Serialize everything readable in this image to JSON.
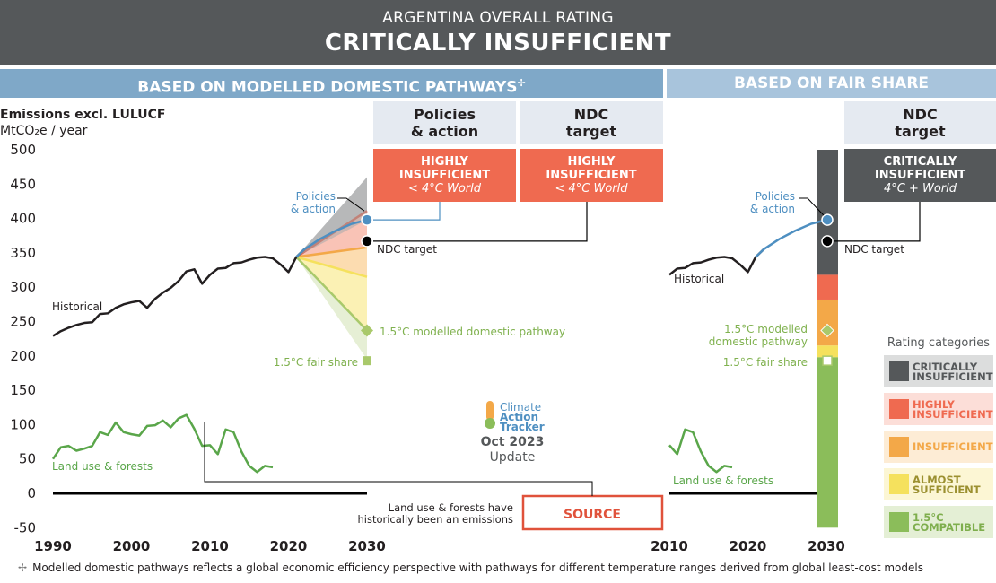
{
  "header": {
    "subtitle": "ARGENTINA OVERALL RATING",
    "title": "CRITICALLY INSUFFICIENT"
  },
  "bands": {
    "left": "BASED ON MODELLED DOMESTIC PATHWAYS",
    "left_mark": "✢",
    "right": "BASED ON FAIR SHARE"
  },
  "columns": {
    "policies": {
      "heading": "Policies\n& action",
      "rating": "HIGHLY\nINSUFFICIENT",
      "world": "< 4°C World",
      "color": "#ef6a50"
    },
    "ndc_modelled": {
      "heading": "NDC\ntarget",
      "rating": "HIGHLY\nINSUFFICIENT",
      "world": "< 4°C World",
      "color": "#ef6a50"
    },
    "ndc_fair": {
      "heading": "NDC\ntarget",
      "rating": "CRITICALLY\nINSUFFICIENT",
      "world": "4°C + World",
      "color": "#55585a"
    }
  },
  "chart_data": {
    "type": "line",
    "ylabel_line1": "Emissions excl. LULUCF",
    "ylabel_line2": "MtCO₂e / year",
    "ylim": [
      -50,
      500
    ],
    "yticks": [
      500,
      450,
      400,
      350,
      300,
      250,
      200,
      150,
      100,
      50,
      0,
      -50
    ],
    "xlim_left": [
      1990,
      2030
    ],
    "xticks_left": [
      1990,
      2000,
      2010,
      2020,
      2030
    ],
    "xlim_right": [
      2010,
      2030
    ],
    "xticks_right": [
      2010,
      2020,
      2030
    ],
    "historical": {
      "name": "Historical",
      "x": [
        1990,
        1991,
        1992,
        1993,
        1994,
        1995,
        1996,
        1997,
        1998,
        1999,
        2000,
        2001,
        2002,
        2003,
        2004,
        2005,
        2006,
        2007,
        2008,
        2009,
        2010,
        2011,
        2012,
        2013,
        2014,
        2015,
        2016,
        2017,
        2018,
        2019,
        2020,
        2021,
        2022
      ],
      "values": [
        229,
        236,
        241,
        245,
        248,
        249,
        261,
        262,
        270,
        275,
        278,
        280,
        270,
        283,
        292,
        299,
        309,
        323,
        326,
        305,
        318,
        327,
        328,
        335,
        336,
        340,
        343,
        344,
        342,
        333,
        322,
        344,
        355
      ]
    },
    "policies_action": {
      "name": "Policies\n& action",
      "x": [
        2021,
        2022,
        2024,
        2026,
        2028,
        2030
      ],
      "values": [
        344,
        355,
        370,
        382,
        392,
        398
      ]
    },
    "policies_range": {
      "x": [
        2021,
        2030
      ],
      "upper": [
        344,
        460
      ],
      "lower": [
        344,
        398
      ]
    },
    "ndc_target": {
      "name": "NDC target",
      "year": 2030,
      "value": 367
    },
    "modelled_pathway": {
      "name": "1.5°C modelled domestic pathway",
      "year": 2030,
      "value": 237
    },
    "fair_share": {
      "name": "1.5°C fair share",
      "year": 2030,
      "value": 193
    },
    "category_boundaries_2030": {
      "critically_highly": 411,
      "highly_insufficient": 358,
      "insufficient_almost": 315,
      "almost_compatible": 237,
      "lower_bound": 195
    },
    "fair_share_bar": [
      {
        "category": "critically",
        "from": 318,
        "to": 500
      },
      {
        "category": "highly",
        "from": 282,
        "to": 318
      },
      {
        "category": "insufficient",
        "from": 215,
        "to": 282
      },
      {
        "category": "almost",
        "from": 198,
        "to": 215
      },
      {
        "category": "compatible",
        "from": -50,
        "to": 198
      }
    ],
    "land_use": {
      "name": "Land use & forests",
      "x": [
        1990,
        1991,
        1992,
        1993,
        1994,
        1995,
        1996,
        1997,
        1998,
        1999,
        2000,
        2001,
        2002,
        2003,
        2004,
        2005,
        2006,
        2007,
        2008,
        2009,
        2010,
        2011,
        2012,
        2013,
        2014,
        2015,
        2016,
        2017,
        2018
      ],
      "values": [
        50,
        67,
        69,
        62,
        65,
        69,
        89,
        85,
        103,
        89,
        86,
        84,
        98,
        99,
        106,
        96,
        109,
        114,
        94,
        69,
        70,
        57,
        93,
        89,
        61,
        40,
        31,
        40,
        38
      ]
    },
    "zero_line": 0
  },
  "annotations": {
    "land_use_note": "Land use & forests have\nhistorically been an emissions",
    "source_label": "SOURCE",
    "logo_words": [
      "Climate",
      "Action",
      "Tracker"
    ],
    "update_date": "Oct 2023",
    "update_label": "Update"
  },
  "legend": {
    "title": "Rating categories",
    "items": [
      {
        "label": "CRITICALLY\nINSUFFICIENT",
        "color": "#55585a",
        "bg": "#dcdddd",
        "text": "#55585a"
      },
      {
        "label": "HIGHLY\nINSUFFICIENT",
        "color": "#ef6a50",
        "bg": "#fcded8",
        "text": "#ef6a50"
      },
      {
        "label": "INSUFFICIENT",
        "color": "#f3a848",
        "bg": "#fdecd5",
        "text": "#f3a848"
      },
      {
        "label": "ALMOST\nSUFFICIENT",
        "color": "#f5e15d",
        "bg": "#fcf6d4",
        "text": "#9b9030"
      },
      {
        "label": "1.5°C\nCOMPATIBLE",
        "color": "#8bbd5a",
        "bg": "#e4efd5",
        "text": "#7eae4d"
      }
    ]
  },
  "colors": {
    "historical": "#231f20",
    "policies": "#4e8fc1",
    "land_use": "#5aa64a",
    "green_label": "#7fb14e",
    "blue_label": "#4e8fc1"
  },
  "footnote": {
    "mark": "✢",
    "text": "Modelled domestic pathways reflects a global economic efficiency perspective with pathways for different temperature ranges derived from global least-cost models"
  }
}
